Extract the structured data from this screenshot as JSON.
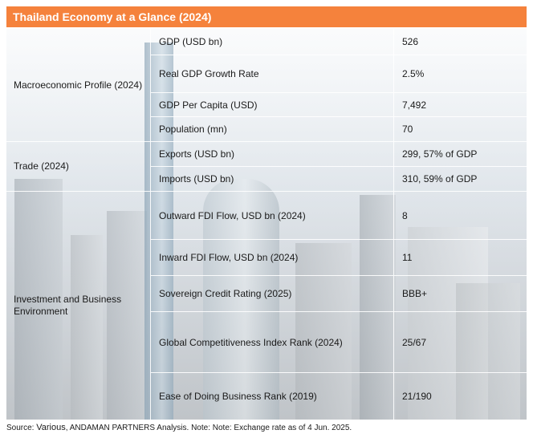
{
  "header": {
    "title": "Thailand Economy at a Glance (2024)"
  },
  "sections": [
    {
      "category": "Macroeconomic Profile (2024)",
      "rows": [
        {
          "label": "GDP (USD bn)",
          "value": "526"
        },
        {
          "label": "Real GDP Growth Rate",
          "value": "2.5%"
        },
        {
          "label": "GDP Per Capita (USD)",
          "value": "7,492"
        },
        {
          "label": "Population (mn)",
          "value": "70"
        }
      ]
    },
    {
      "category": "Trade (2024)",
      "rows": [
        {
          "label": "Exports (USD bn)",
          "value": "299, 57% of GDP"
        },
        {
          "label": "Imports (USD bn)",
          "value": "310, 59% of GDP"
        }
      ]
    },
    {
      "category": "Investment and Business Environment",
      "rows": [
        {
          "label": "Outward FDI Flow, USD bn (2024)",
          "value": "8"
        },
        {
          "label": "Inward FDI Flow, USD bn (2024)",
          "value": "11"
        },
        {
          "label": "Sovereign Credit Rating (2025)",
          "value": "BBB+"
        },
        {
          "label": "Global Competitiveness Index Rank (2024)",
          "value": "25/67"
        },
        {
          "label": "Ease of Doing Business Rank (2019)",
          "value": "21/190"
        }
      ]
    }
  ],
  "footer": {
    "prefix": "Source: ",
    "source_main": "Various",
    "rest": ", ANDAMAN PARTNERS Analysis. Note: Note: Exchange rate as of 4 Jun. 2025."
  }
}
